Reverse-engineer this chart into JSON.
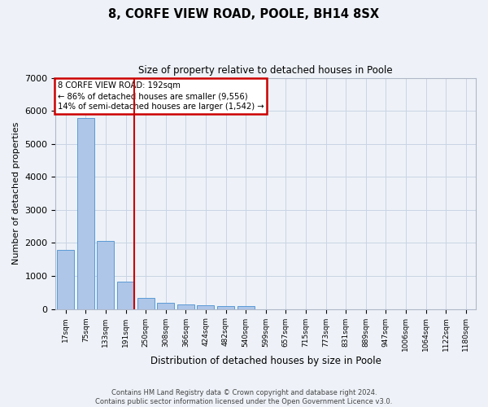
{
  "title": "8, CORFE VIEW ROAD, POOLE, BH14 8SX",
  "subtitle": "Size of property relative to detached houses in Poole",
  "xlabel": "Distribution of detached houses by size in Poole",
  "ylabel": "Number of detached properties",
  "footer_line1": "Contains HM Land Registry data © Crown copyright and database right 2024.",
  "footer_line2": "Contains public sector information licensed under the Open Government Licence v3.0.",
  "annotation_line1": "8 CORFE VIEW ROAD: 192sqm",
  "annotation_line2": "← 86% of detached houses are smaller (9,556)",
  "annotation_line3": "14% of semi-detached houses are larger (1,542) →",
  "bar_categories": [
    "17sqm",
    "75sqm",
    "133sqm",
    "191sqm",
    "250sqm",
    "308sqm",
    "366sqm",
    "424sqm",
    "482sqm",
    "540sqm",
    "599sqm",
    "657sqm",
    "715sqm",
    "773sqm",
    "831sqm",
    "889sqm",
    "947sqm",
    "1006sqm",
    "1064sqm",
    "1122sqm",
    "1180sqm"
  ],
  "bar_values": [
    1780,
    5780,
    2060,
    820,
    340,
    195,
    130,
    115,
    100,
    80,
    0,
    0,
    0,
    0,
    0,
    0,
    0,
    0,
    0,
    0,
    0
  ],
  "bar_color": "#aec6e8",
  "bar_edge_color": "#5b9bd5",
  "vline_color": "#cc0000",
  "annotation_box_color": "#cc0000",
  "grid_color": "#c8d4e4",
  "bg_color": "#eef2f8",
  "ylim": [
    0,
    7000
  ],
  "yticks": [
    0,
    1000,
    2000,
    3000,
    4000,
    5000,
    6000,
    7000
  ],
  "vline_index": 3
}
